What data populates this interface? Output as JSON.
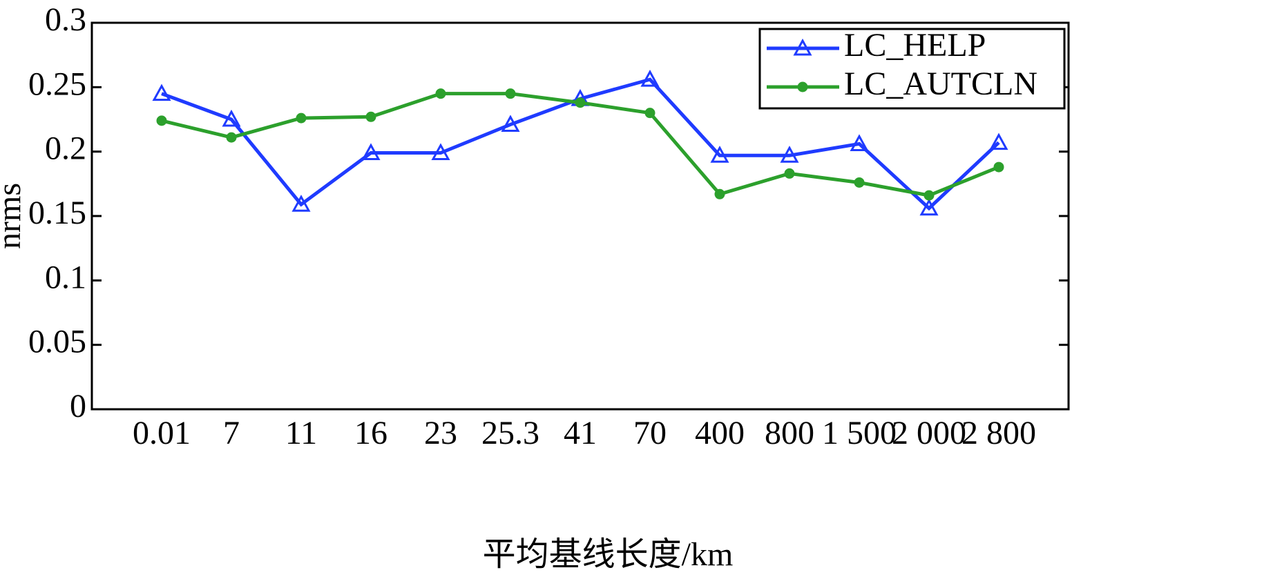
{
  "chart_data": {
    "type": "line",
    "x_label": "平均基线长度/km",
    "y_label": "nrms",
    "categories": [
      "0.01",
      "7",
      "11",
      "16",
      "23",
      "25.3",
      "41",
      "70",
      "400",
      "800",
      "1 500",
      "2 000",
      "2 800"
    ],
    "series": [
      {
        "name": "LC_HELP",
        "color": "#1f3bff",
        "marker": "triangle",
        "values": [
          0.245,
          0.225,
          0.159,
          0.199,
          0.199,
          0.221,
          0.241,
          0.256,
          0.197,
          0.197,
          0.206,
          0.156,
          0.207
        ]
      },
      {
        "name": "LC_AUTCLN",
        "color": "#2ca02c",
        "marker": "circle",
        "values": [
          0.224,
          0.211,
          0.226,
          0.227,
          0.245,
          0.245,
          0.238,
          0.23,
          0.167,
          0.183,
          0.176,
          0.166,
          0.188
        ]
      }
    ],
    "ylim": [
      0,
      0.3
    ],
    "yticks": [
      0,
      0.05,
      0.1,
      0.15,
      0.2,
      0.25,
      0.3
    ],
    "grid": false,
    "legend": "top-right"
  }
}
